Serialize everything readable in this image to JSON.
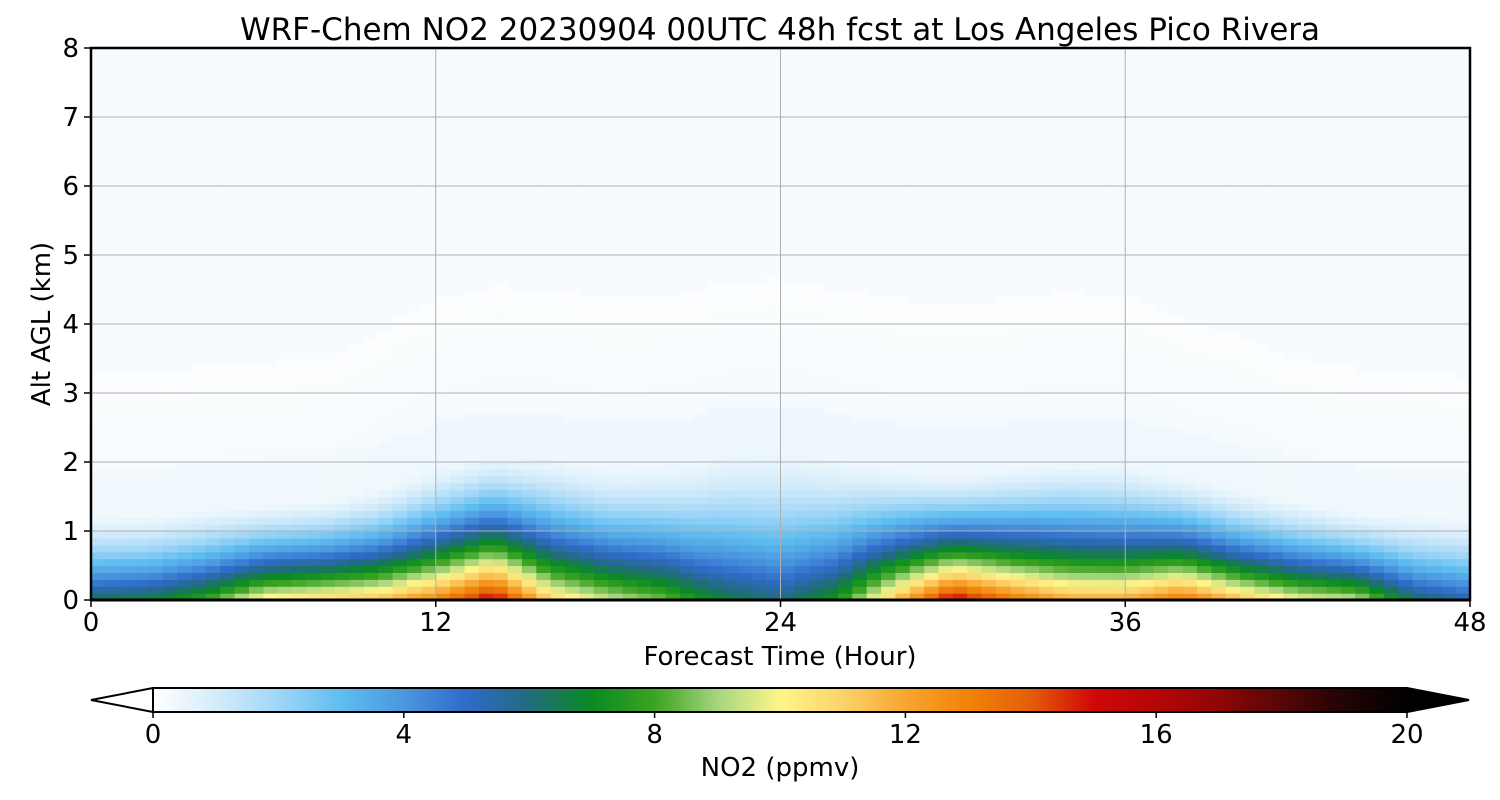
{
  "chart_data": {
    "type": "heatmap",
    "title": "WRF-Chem NO2  20230904 00UTC 48h fcst at Los Angeles Pico Rivera",
    "xlabel": "Forecast Time (Hour)",
    "ylabel": "Alt AGL (km)",
    "xlim": [
      0,
      48
    ],
    "ylim": [
      0,
      8
    ],
    "x_ticks": [
      "0",
      "12",
      "24",
      "36",
      "48"
    ],
    "y_ticks": [
      "0",
      "1",
      "2",
      "3",
      "4",
      "5",
      "6",
      "7",
      "8"
    ],
    "grid": true,
    "colorbar": {
      "label": "NO2  (ppmv)",
      "range": [
        0,
        20
      ],
      "ticks": [
        "0",
        "4",
        "8",
        "12",
        "16",
        "20"
      ],
      "extend": "both",
      "orientation": "horizontal",
      "stops": [
        {
          "v": 0,
          "c": "#ffffff"
        },
        {
          "v": 1,
          "c": "#d4ecfa"
        },
        {
          "v": 2,
          "c": "#9fd6f7"
        },
        {
          "v": 3,
          "c": "#5fbdf0"
        },
        {
          "v": 4,
          "c": "#4a97df"
        },
        {
          "v": 5,
          "c": "#2f6bc9"
        },
        {
          "v": 6,
          "c": "#226b7e"
        },
        {
          "v": 7,
          "c": "#098b22"
        },
        {
          "v": 8,
          "c": "#3ca321"
        },
        {
          "v": 9,
          "c": "#a6d57e"
        },
        {
          "v": 10,
          "c": "#fff58a"
        },
        {
          "v": 11,
          "c": "#fbd36a"
        },
        {
          "v": 12,
          "c": "#f8a531"
        },
        {
          "v": 13,
          "c": "#f28307"
        },
        {
          "v": 14,
          "c": "#e45d09"
        },
        {
          "v": 15,
          "c": "#d10808"
        },
        {
          "v": 16,
          "c": "#b50606"
        },
        {
          "v": 17,
          "c": "#8f0606"
        },
        {
          "v": 18,
          "c": "#560606"
        },
        {
          "v": 19,
          "c": "#220404"
        },
        {
          "v": 20,
          "c": "#000000"
        }
      ]
    },
    "profiles": [
      {
        "h": 0,
        "surface": 6.5,
        "depth_km": 1.3,
        "bg": 0.3
      },
      {
        "h": 2,
        "surface": 6.8,
        "depth_km": 1.3,
        "bg": 0.3
      },
      {
        "h": 4,
        "surface": 8.0,
        "depth_km": 1.4,
        "bg": 0.3
      },
      {
        "h": 6,
        "surface": 10.5,
        "depth_km": 1.45,
        "bg": 0.3
      },
      {
        "h": 8,
        "surface": 11.0,
        "depth_km": 1.5,
        "bg": 0.3
      },
      {
        "h": 10,
        "surface": 11.5,
        "depth_km": 1.65,
        "bg": 0.35
      },
      {
        "h": 12,
        "surface": 13.0,
        "depth_km": 1.95,
        "bg": 0.4
      },
      {
        "h": 14,
        "surface": 15.5,
        "depth_km": 2.15,
        "bg": 0.4
      },
      {
        "h": 16,
        "surface": 11.0,
        "depth_km": 2.1,
        "bg": 0.4
      },
      {
        "h": 18,
        "surface": 9.5,
        "depth_km": 1.95,
        "bg": 0.4
      },
      {
        "h": 20,
        "surface": 8.5,
        "depth_km": 2.0,
        "bg": 0.4
      },
      {
        "h": 21,
        "surface": 7.5,
        "depth_km": 2.05,
        "bg": 0.4
      },
      {
        "h": 22,
        "surface": 6.8,
        "depth_km": 2.2,
        "bg": 0.4
      },
      {
        "h": 24,
        "surface": 6.0,
        "depth_km": 2.25,
        "bg": 0.4
      },
      {
        "h": 26,
        "surface": 7.5,
        "depth_km": 2.1,
        "bg": 0.4
      },
      {
        "h": 28,
        "surface": 11.5,
        "depth_km": 1.95,
        "bg": 0.4
      },
      {
        "h": 30,
        "surface": 15.5,
        "depth_km": 1.85,
        "bg": 0.4
      },
      {
        "h": 32,
        "surface": 13.5,
        "depth_km": 1.95,
        "bg": 0.4
      },
      {
        "h": 34,
        "surface": 12.0,
        "depth_km": 2.05,
        "bg": 0.4
      },
      {
        "h": 36,
        "surface": 12.0,
        "depth_km": 2.0,
        "bg": 0.4
      },
      {
        "h": 38,
        "surface": 13.5,
        "depth_km": 1.85,
        "bg": 0.35
      },
      {
        "h": 40,
        "surface": 11.5,
        "depth_km": 1.65,
        "bg": 0.35
      },
      {
        "h": 42,
        "surface": 10.0,
        "depth_km": 1.5,
        "bg": 0.3
      },
      {
        "h": 44,
        "surface": 9.5,
        "depth_km": 1.35,
        "bg": 0.3
      },
      {
        "h": 46,
        "surface": 6.5,
        "depth_km": 1.3,
        "bg": 0.3
      },
      {
        "h": 48,
        "surface": 5.5,
        "depth_km": 1.25,
        "bg": 0.3
      }
    ]
  }
}
